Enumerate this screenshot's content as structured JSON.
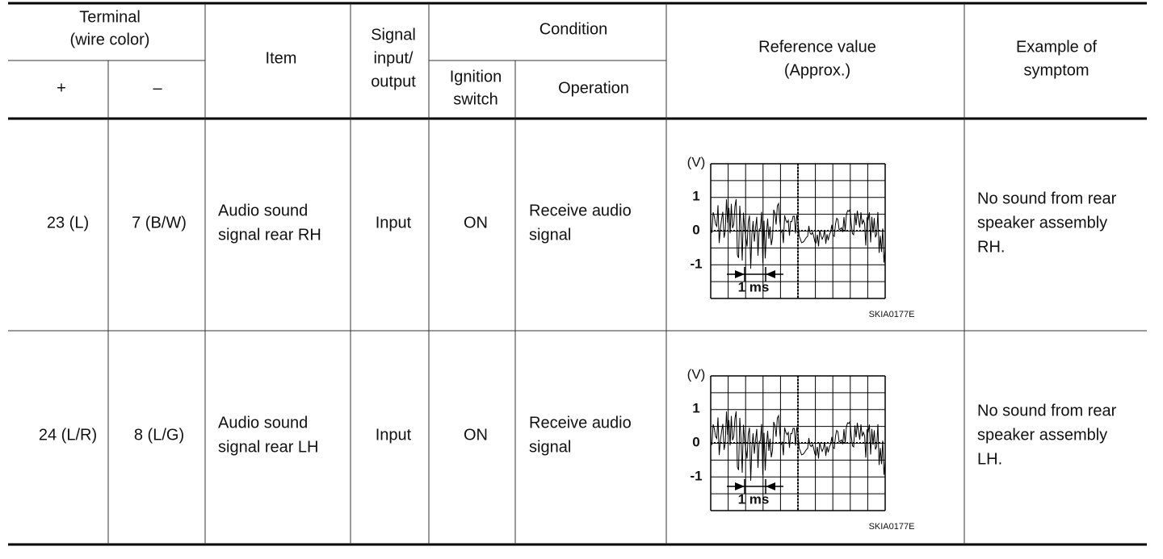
{
  "header": {
    "terminal": [
      "Terminal",
      "(wire color)"
    ],
    "plus": "+",
    "minus": "–",
    "item": "Item",
    "signal": [
      "Signal",
      "input/",
      "output"
    ],
    "condition": "Condition",
    "ignition": [
      "Ignition",
      "switch"
    ],
    "operation": "Operation",
    "reference": [
      "Reference value",
      "(Approx.)"
    ],
    "symptom": [
      "Example of",
      "symptom"
    ]
  },
  "rows": [
    {
      "plus": "23 (L)",
      "minus": "7 (B/W)",
      "item": [
        "Audio sound",
        "signal rear RH"
      ],
      "signal": "Input",
      "ignition": "ON",
      "operation": [
        "Receive audio",
        "signal"
      ],
      "scope": {
        "unit": "(V)",
        "levels": [
          "1",
          "0",
          "-1"
        ],
        "time": "1 ms",
        "code": "SKIA0177E"
      },
      "symptom": [
        "No sound from rear",
        "speaker assembly",
        "RH."
      ]
    },
    {
      "plus": "24 (L/R)",
      "minus": "8 (L/G)",
      "item": [
        "Audio sound",
        "signal rear LH"
      ],
      "signal": "Input",
      "ignition": "ON",
      "operation": [
        "Receive audio",
        "signal"
      ],
      "scope": {
        "unit": "(V)",
        "levels": [
          "1",
          "0",
          "-1"
        ],
        "time": "1 ms",
        "code": "SKIA0177E"
      },
      "symptom": [
        "No sound from rear",
        "speaker assembly",
        "LH."
      ]
    }
  ]
}
